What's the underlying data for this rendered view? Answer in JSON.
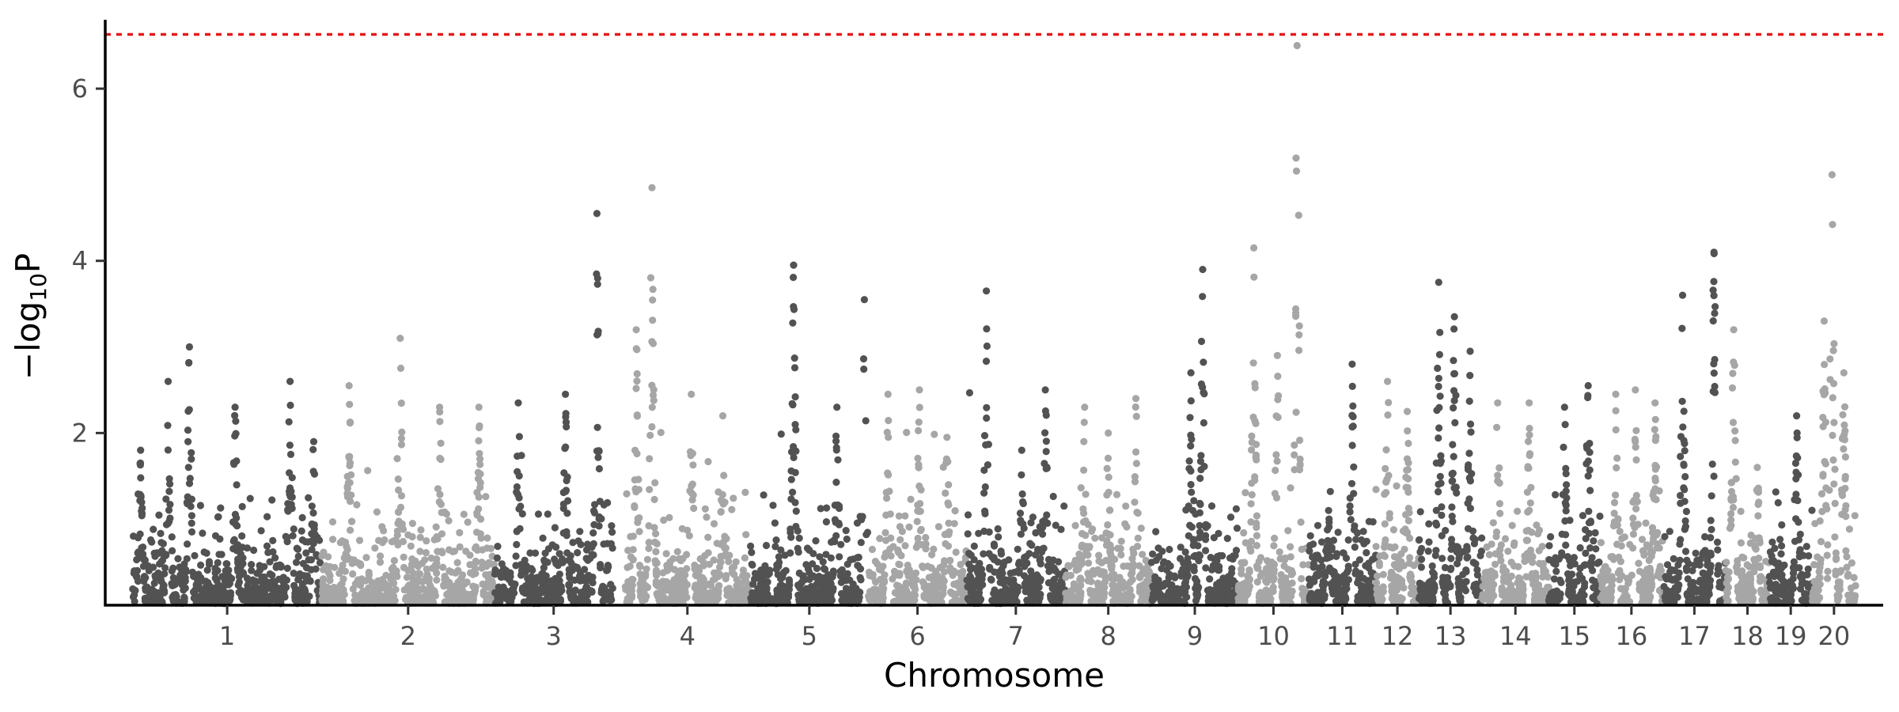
{
  "chart_data": {
    "type": "scatter",
    "subtype": "manhattan",
    "title": "",
    "xlabel": "Chromosome",
    "ylabel": "−log10P",
    "ylabel_parts": {
      "prefix": "−log",
      "subscript": "10",
      "suffix": "P"
    },
    "ylim": [
      0,
      6.8
    ],
    "yticks": [
      2,
      4,
      6
    ],
    "threshold": 6.63,
    "threshold_color": "#e41a1c",
    "grid": false,
    "legend": "none",
    "colors": {
      "dark": "#525252",
      "light": "#a6a6a6"
    },
    "chromosomes": [
      {
        "label": "1",
        "start": 0.0,
        "end": 2.4,
        "peaks": [
          {
            "at": 0.1,
            "max": 1.8
          },
          {
            "at": 0.45,
            "max": 2.6
          },
          {
            "at": 0.72,
            "max": 3.0
          },
          {
            "at": 1.3,
            "max": 2.3
          },
          {
            "at": 2.0,
            "max": 2.6
          },
          {
            "at": 2.3,
            "max": 1.9
          }
        ]
      },
      {
        "label": "2",
        "start": 2.4,
        "end": 4.6,
        "peaks": [
          {
            "at": 2.75,
            "max": 2.55
          },
          {
            "at": 3.4,
            "max": 3.1
          },
          {
            "at": 3.9,
            "max": 2.3
          },
          {
            "at": 4.4,
            "max": 2.3
          }
        ]
      },
      {
        "label": "3",
        "start": 4.6,
        "end": 6.1,
        "peaks": [
          {
            "at": 4.9,
            "max": 2.35
          },
          {
            "at": 5.5,
            "max": 2.45
          },
          {
            "at": 5.9,
            "max": 4.55
          }
        ]
      },
      {
        "label": "4",
        "start": 6.25,
        "end": 7.85,
        "peaks": [
          {
            "at": 6.4,
            "max": 3.2
          },
          {
            "at": 6.6,
            "max": 4.85
          },
          {
            "at": 7.1,
            "max": 2.45
          },
          {
            "at": 7.5,
            "max": 2.2
          }
        ]
      },
      {
        "label": "5",
        "start": 7.85,
        "end": 9.35,
        "peaks": [
          {
            "at": 8.4,
            "max": 3.95
          },
          {
            "at": 8.95,
            "max": 2.3
          },
          {
            "at": 9.3,
            "max": 3.55
          }
        ]
      },
      {
        "label": "6",
        "start": 9.35,
        "end": 10.6,
        "peaks": [
          {
            "at": 9.6,
            "max": 2.45
          },
          {
            "at": 10.0,
            "max": 2.5
          },
          {
            "at": 10.35,
            "max": 1.95
          }
        ]
      },
      {
        "label": "7",
        "start": 10.6,
        "end": 11.85,
        "peaks": [
          {
            "at": 10.85,
            "max": 3.65
          },
          {
            "at": 11.3,
            "max": 1.8
          },
          {
            "at": 11.6,
            "max": 2.5
          }
        ]
      },
      {
        "label": "8",
        "start": 11.85,
        "end": 12.95,
        "peaks": [
          {
            "at": 12.1,
            "max": 2.3
          },
          {
            "at": 12.4,
            "max": 2.0
          },
          {
            "at": 12.75,
            "max": 2.4
          }
        ]
      },
      {
        "label": "9",
        "start": 12.95,
        "end": 14.05,
        "peaks": [
          {
            "at": 13.45,
            "max": 2.7
          },
          {
            "at": 13.6,
            "max": 3.9
          }
        ]
      },
      {
        "label": "10",
        "start": 14.05,
        "end": 14.95,
        "peaks": [
          {
            "at": 14.25,
            "max": 4.15
          },
          {
            "at": 14.55,
            "max": 2.9
          },
          {
            "at": 14.8,
            "max": 6.5
          }
        ]
      },
      {
        "label": "11",
        "start": 14.95,
        "end": 15.8,
        "peaks": [
          {
            "at": 15.2,
            "max": 1.1
          },
          {
            "at": 15.5,
            "max": 2.8
          }
        ]
      },
      {
        "label": "12",
        "start": 15.8,
        "end": 16.35,
        "peaks": [
          {
            "at": 15.95,
            "max": 2.6
          },
          {
            "at": 16.2,
            "max": 2.25
          }
        ]
      },
      {
        "label": "13",
        "start": 16.35,
        "end": 17.15,
        "peaks": [
          {
            "at": 16.6,
            "max": 3.75
          },
          {
            "at": 16.8,
            "max": 3.35
          },
          {
            "at": 17.0,
            "max": 2.95
          }
        ]
      },
      {
        "label": "14",
        "start": 17.15,
        "end": 18.0,
        "peaks": [
          {
            "at": 17.35,
            "max": 2.35
          },
          {
            "at": 17.75,
            "max": 2.35
          }
        ]
      },
      {
        "label": "15",
        "start": 18.0,
        "end": 18.65,
        "peaks": [
          {
            "at": 18.2,
            "max": 2.3
          },
          {
            "at": 18.5,
            "max": 2.55
          }
        ]
      },
      {
        "label": "16",
        "start": 18.65,
        "end": 19.45,
        "peaks": [
          {
            "at": 18.85,
            "max": 2.45
          },
          {
            "at": 19.1,
            "max": 2.5
          },
          {
            "at": 19.35,
            "max": 2.35
          }
        ]
      },
      {
        "label": "17",
        "start": 19.45,
        "end": 20.25,
        "peaks": [
          {
            "at": 19.7,
            "max": 3.6
          },
          {
            "at": 20.1,
            "max": 4.1
          }
        ]
      },
      {
        "label": "18",
        "start": 20.25,
        "end": 20.8,
        "peaks": [
          {
            "at": 20.35,
            "max": 3.2
          },
          {
            "at": 20.65,
            "max": 1.6
          }
        ]
      },
      {
        "label": "19",
        "start": 20.8,
        "end": 21.35,
        "peaks": [
          {
            "at": 21.15,
            "max": 2.2
          }
        ]
      },
      {
        "label": "20",
        "start": 21.35,
        "end": 21.9,
        "peaks": [
          {
            "at": 21.5,
            "max": 3.3
          },
          {
            "at": 21.6,
            "max": 5.0
          },
          {
            "at": 21.75,
            "max": 2.7
          }
        ]
      }
    ]
  }
}
